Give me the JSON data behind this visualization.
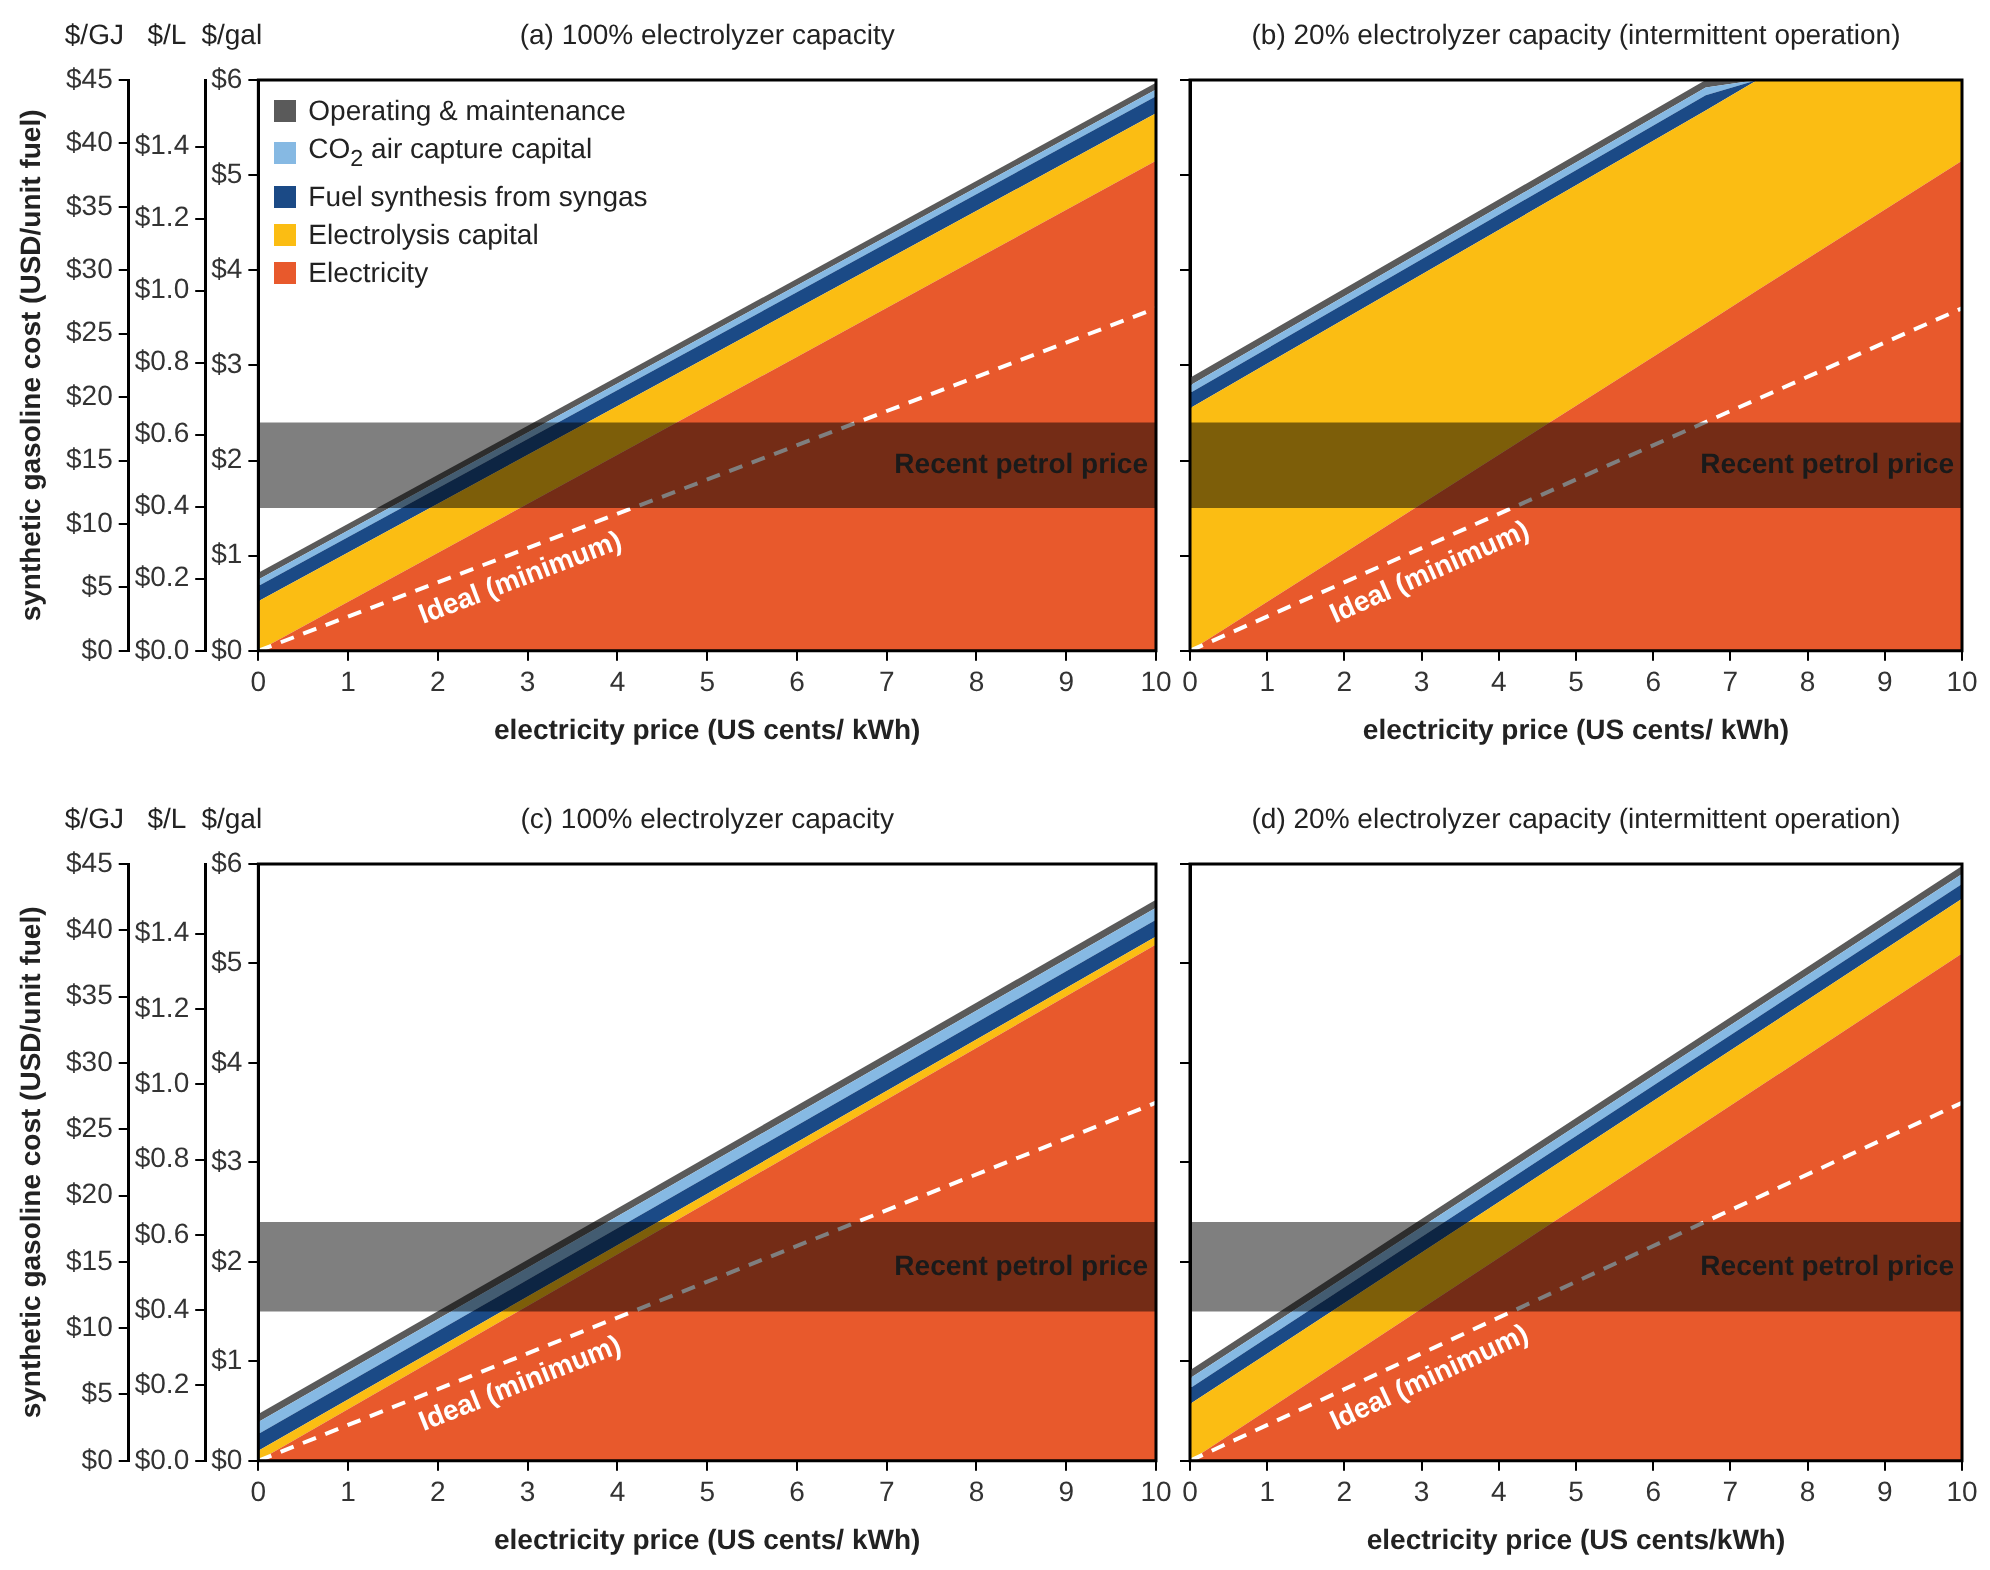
{
  "chart_data": [
    {
      "type": "area",
      "title": "(a) 100% electrolyzer capacity",
      "xlabel": "electricity price (US cents/ kWh)",
      "ylabel": "$/gal",
      "y2label": "$/L",
      "y3label": "$/GJ",
      "annotations": [
        "synthetic gasoline cost (USD/unit fuel)"
      ],
      "stacked": true,
      "legend": "top left",
      "grid": false,
      "x": [
        0,
        10
      ],
      "xlim": [
        0,
        10
      ],
      "xticks": [
        0,
        1,
        2,
        3,
        4,
        5,
        6,
        7,
        8,
        9,
        10
      ],
      "ylim": [
        0,
        6
      ],
      "yticks": [
        {
          "value": 0,
          "label": "$0"
        },
        {
          "value": 1,
          "label": "$1"
        },
        {
          "value": 2,
          "label": "$2"
        },
        {
          "value": 3,
          "label": "$3"
        },
        {
          "value": 4,
          "label": "$4"
        },
        {
          "value": 5,
          "label": "$5"
        },
        {
          "value": 6,
          "label": "$6"
        }
      ],
      "y2lim": [
        0,
        1.585
      ],
      "y2ticks": [
        {
          "value": 0,
          "label": "$0.0"
        },
        {
          "value": 0.2,
          "label": "$0.2"
        },
        {
          "value": 0.4,
          "label": "$0.4"
        },
        {
          "value": 0.6,
          "label": "$0.6"
        },
        {
          "value": 0.8,
          "label": "$0.8"
        },
        {
          "value": 1.0,
          "label": "$1.0"
        },
        {
          "value": 1.2,
          "label": "$1.2"
        },
        {
          "value": 1.4,
          "label": "$1.4"
        }
      ],
      "y3lim": [
        0,
        45
      ],
      "y3ticks": [
        {
          "value": 0,
          "label": "$0"
        },
        {
          "value": 5,
          "label": "$5"
        },
        {
          "value": 10,
          "label": "$10"
        },
        {
          "value": 15,
          "label": "$15"
        },
        {
          "value": 20,
          "label": "$20"
        },
        {
          "value": 25,
          "label": "$25"
        },
        {
          "value": 30,
          "label": "$30"
        },
        {
          "value": 35,
          "label": "$35"
        },
        {
          "value": 40,
          "label": "$40"
        },
        {
          "value": 45,
          "label": "$45"
        }
      ],
      "bands": [
        {
          "axis": "y",
          "from": 1.5,
          "to": 2.4,
          "label": "Recent petrol price",
          "color": "#000000"
        }
      ],
      "series": [
        {
          "name": "Electricity",
          "color": "#e8592c",
          "values": [
            0,
            5.15
          ]
        },
        {
          "name": "Electrolysis capital",
          "color": "#fbbd13",
          "values": [
            0.52,
            0.5
          ]
        },
        {
          "name": "Fuel synthesis from syngas",
          "color": "#1b4a86",
          "values": [
            0.16,
            0.18
          ]
        },
        {
          "name": "CO$_{2}$ air capture capital",
          "color": "#86b9e3",
          "values": [
            0.07,
            0.07
          ]
        },
        {
          "name": "Operating & maintenance",
          "color": "#5a5a5a",
          "values": [
            0.07,
            0.07
          ]
        },
        {
          "name": "Ideal (minimum)",
          "type": "line",
          "line_style": "dashed",
          "color": "#ffffff",
          "values": [
            0,
            3.6
          ]
        }
      ]
    },
    {
      "type": "area",
      "title": "(b) 20% electrolyzer capacity (intermittent operation)",
      "xlabel": "electricity price (US cents/ kWh)",
      "stacked": true,
      "grid": false,
      "tick_labels": "x",
      "x": [
        0,
        6.68,
        7.35,
        10
      ],
      "xlim": [
        0,
        10
      ],
      "xticks": [
        0,
        1,
        2,
        3,
        4,
        5,
        6,
        7,
        8,
        9,
        10
      ],
      "ylim": [
        0,
        6
      ],
      "yticks": [
        {
          "value": 0,
          "label": null
        },
        {
          "value": 1,
          "label": null
        },
        {
          "value": 2,
          "label": null
        },
        {
          "value": 3,
          "label": null
        },
        {
          "value": 4,
          "label": null
        },
        {
          "value": 5,
          "label": null
        },
        {
          "value": 6,
          "label": null
        }
      ],
      "bands": [
        {
          "axis": "y",
          "from": 1.5,
          "to": 2.4,
          "label": "Recent petrol price",
          "color": "#000000"
        }
      ],
      "series": [
        {
          "color": "#e8592c",
          "values": [
            0,
            3.44,
            3.79,
            5.15
          ]
        },
        {
          "color": "#fbbd13",
          "values": [
            2.55,
            2.24,
            2.21,
            0.85
          ]
        },
        {
          "color": "#1b4a86",
          "values": [
            0.16,
            0.16,
            0,
            0
          ]
        },
        {
          "color": "#86b9e3",
          "values": [
            0.08,
            0.08,
            0,
            0
          ]
        },
        {
          "color": "#5a5a5a",
          "values": [
            0.08,
            0.08,
            0,
            0
          ]
        },
        {
          "name": "Ideal (minimum)",
          "type": "line",
          "line_style": "dashed",
          "color": "#ffffff",
          "x": [
            0,
            10
          ],
          "values": [
            0,
            3.6
          ]
        }
      ]
    },
    {
      "type": "area",
      "title": "(c) 100% electrolyzer capacity",
      "xlabel": "electricity price (US cents/ kWh)",
      "ylabel": "$/gal",
      "y2label": "$/L",
      "y3label": "$/GJ",
      "annotations": [
        "synthetic gasoline cost (USD/unit fuel)"
      ],
      "stacked": true,
      "grid": false,
      "x": [
        0,
        10
      ],
      "xlim": [
        0,
        10
      ],
      "xticks": [
        0,
        1,
        2,
        3,
        4,
        5,
        6,
        7,
        8,
        9,
        10
      ],
      "ylim": [
        0,
        6
      ],
      "yticks": [
        {
          "value": 0,
          "label": "$0"
        },
        {
          "value": 1,
          "label": "$1"
        },
        {
          "value": 2,
          "label": "$2"
        },
        {
          "value": 3,
          "label": "$3"
        },
        {
          "value": 4,
          "label": "$4"
        },
        {
          "value": 5,
          "label": "$5"
        },
        {
          "value": 6,
          "label": "$6"
        }
      ],
      "y2lim": [
        0,
        1.585
      ],
      "y2ticks": [
        {
          "value": 0,
          "label": "$0.0"
        },
        {
          "value": 0.2,
          "label": "$0.2"
        },
        {
          "value": 0.4,
          "label": "$0.4"
        },
        {
          "value": 0.6,
          "label": "$0.6"
        },
        {
          "value": 0.8,
          "label": "$0.8"
        },
        {
          "value": 1.0,
          "label": "$1.0"
        },
        {
          "value": 1.2,
          "label": "$1.2"
        },
        {
          "value": 1.4,
          "label": "$1.4"
        }
      ],
      "y3lim": [
        0,
        45
      ],
      "y3ticks": [
        {
          "value": 0,
          "label": "$0"
        },
        {
          "value": 5,
          "label": "$5"
        },
        {
          "value": 10,
          "label": "$10"
        },
        {
          "value": 15,
          "label": "$15"
        },
        {
          "value": 20,
          "label": "$20"
        },
        {
          "value": 25,
          "label": "$25"
        },
        {
          "value": 30,
          "label": "$30"
        },
        {
          "value": 35,
          "label": "$35"
        },
        {
          "value": 40,
          "label": "$40"
        },
        {
          "value": 45,
          "label": "$45"
        }
      ],
      "bands": [
        {
          "axis": "y",
          "from": 1.5,
          "to": 2.4,
          "label": "Recent petrol price",
          "color": "#000000"
        }
      ],
      "series": [
        {
          "color": "#e8592c",
          "values": [
            0,
            5.19
          ]
        },
        {
          "color": "#fbbd13",
          "values": [
            0.1,
            0.08
          ]
        },
        {
          "color": "#1b4a86",
          "values": [
            0.17,
            0.17
          ]
        },
        {
          "color": "#86b9e3",
          "values": [
            0.12,
            0.12
          ]
        },
        {
          "color": "#5a5a5a",
          "values": [
            0.08,
            0.08
          ]
        },
        {
          "name": "Ideal (minimum)",
          "type": "line",
          "line_style": "dashed",
          "color": "#ffffff",
          "values": [
            0,
            3.6
          ]
        }
      ]
    },
    {
      "type": "area",
      "title": "(d) 20% electrolyzer capacity (intermittent operation)",
      "xlabel": "electricity price (US cents/kWh)",
      "stacked": true,
      "grid": false,
      "tick_labels": "x",
      "x": [
        0,
        10
      ],
      "xlim": [
        0,
        10
      ],
      "xticks": [
        0,
        1,
        2,
        3,
        4,
        5,
        6,
        7,
        8,
        9,
        10
      ],
      "ylim": [
        0,
        6
      ],
      "yticks": [
        {
          "value": 0,
          "label": null
        },
        {
          "value": 1,
          "label": null
        },
        {
          "value": 2,
          "label": null
        },
        {
          "value": 3,
          "label": null
        },
        {
          "value": 4,
          "label": null
        },
        {
          "value": 5,
          "label": null
        },
        {
          "value": 6,
          "label": null
        }
      ],
      "bands": [
        {
          "axis": "y",
          "from": 1.5,
          "to": 2.4,
          "label": "Recent petrol price",
          "color": "#000000"
        }
      ],
      "series": [
        {
          "color": "#e8592c",
          "values": [
            0,
            5.1
          ]
        },
        {
          "color": "#fbbd13",
          "values": [
            0.57,
            0.55
          ]
        },
        {
          "color": "#1b4a86",
          "values": [
            0.16,
            0.15
          ]
        },
        {
          "color": "#86b9e3",
          "values": [
            0.1,
            0.1
          ]
        },
        {
          "color": "#5a5a5a",
          "values": [
            0.08,
            0.08
          ]
        },
        {
          "name": "Ideal (minimum)",
          "type": "line",
          "line_style": "dashed",
          "color": "#ffffff",
          "values": [
            0,
            3.6
          ]
        }
      ]
    }
  ]
}
